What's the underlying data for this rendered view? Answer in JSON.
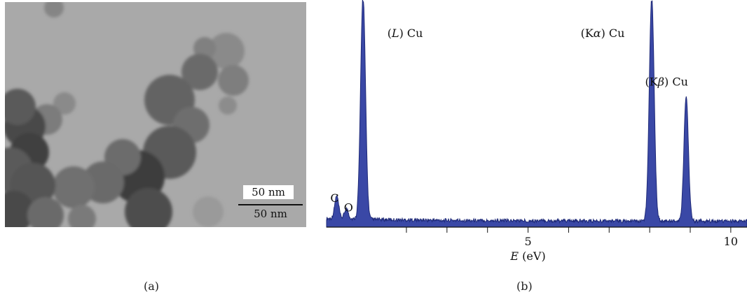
{
  "panel_a": {
    "label": "(a)",
    "scale_bar_text_box": "50 nm",
    "scale_bar_text_below": "50 nm"
  },
  "panel_b": {
    "label": "(b)"
  },
  "colors": {
    "spectrum_fill": "#3a48a6",
    "spectrum_edge": "#1f2a78",
    "tem_background": "#a7a7a7",
    "particle_dark": "#3e3e3e"
  },
  "chart_data": {
    "type": "area",
    "xlabel_italic": "E",
    "xlabel_unit": " (eV)",
    "xlim": [
      0.03,
      10.4
    ],
    "ylim": [
      0,
      100
    ],
    "tick_labels": [
      {
        "x": 5,
        "label": "5"
      },
      {
        "x": 10,
        "label": "10"
      }
    ],
    "minor_ticks": [
      2,
      3,
      4,
      6,
      7,
      8,
      9
    ],
    "grid": false,
    "legend": "none",
    "peaks": [
      {
        "name": "C",
        "energy": 0.28,
        "intensity": 10
      },
      {
        "name": "O",
        "energy": 0.52,
        "intensity": 4.5
      },
      {
        "name": "(L) Cu",
        "energy": 0.93,
        "intensity": 100
      },
      {
        "name": "(Kα) Cu",
        "energy": 8.05,
        "intensity": 100
      },
      {
        "name": "(Kβ) Cu",
        "energy": 8.9,
        "intensity": 56
      }
    ],
    "background_level": 2,
    "annotations": [
      {
        "target": "C",
        "prefix": "",
        "italic": "",
        "suffix": "C"
      },
      {
        "target": "O",
        "prefix": "",
        "italic": "",
        "suffix": "O"
      },
      {
        "target": "(L) Cu",
        "prefix": "(",
        "italic": "L",
        "suffix": ") Cu"
      },
      {
        "target": "(Kα) Cu",
        "prefix": "(K",
        "italic": "α",
        "suffix": ") Cu"
      },
      {
        "target": "(Kβ) Cu",
        "prefix": "(K",
        "italic": "β",
        "suffix": ") Cu"
      }
    ]
  }
}
